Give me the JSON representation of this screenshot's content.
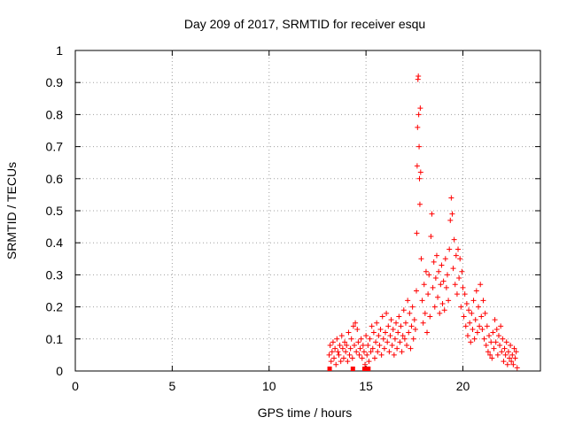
{
  "chart_data": {
    "type": "scatter",
    "title": "Day 209 of 2017, SRMTID for receiver esqu",
    "xlabel": "GPS time / hours",
    "ylabel": "SRMTID / TECUs",
    "xlim": [
      0,
      24
    ],
    "ylim": [
      0,
      1
    ],
    "x_ticks": [
      0,
      5,
      10,
      15,
      20
    ],
    "x_tick_labels": [
      "0",
      "5",
      "10",
      "15",
      "20"
    ],
    "y_ticks": [
      0,
      0.1,
      0.2,
      0.3,
      0.4,
      0.5,
      0.6,
      0.7,
      0.8,
      0.9,
      1
    ],
    "y_tick_labels": [
      "0",
      "0.1",
      "0.2",
      "0.3",
      "0.4",
      "0.5",
      "0.6",
      "0.7",
      "0.8",
      "0.9",
      "1"
    ],
    "grid": true,
    "marker": "plus",
    "color": "#ff0000",
    "series": [
      {
        "name": "SRMTID",
        "points": [
          [
            13.1,
            0.05
          ],
          [
            13.15,
            0.08
          ],
          [
            13.2,
            0.03
          ],
          [
            13.25,
            0.06
          ],
          [
            13.3,
            0.09
          ],
          [
            13.35,
            0.04
          ],
          [
            13.4,
            0.07
          ],
          [
            13.45,
            0.02
          ],
          [
            13.5,
            0.1
          ],
          [
            13.55,
            0.06
          ],
          [
            13.6,
            0.05
          ],
          [
            13.65,
            0.08
          ],
          [
            13.7,
            0.03
          ],
          [
            13.75,
            0.11
          ],
          [
            13.8,
            0.07
          ],
          [
            13.85,
            0.04
          ],
          [
            13.9,
            0.09
          ],
          [
            13.95,
            0.06
          ],
          [
            14.0,
            0.08
          ],
          [
            14.05,
            0.03
          ],
          [
            14.1,
            0.12
          ],
          [
            14.15,
            0.05
          ],
          [
            14.2,
            0.07
          ],
          [
            14.25,
            0.1
          ],
          [
            14.3,
            0.04
          ],
          [
            14.35,
            0.14
          ],
          [
            14.4,
            0.08
          ],
          [
            14.45,
            0.15
          ],
          [
            14.5,
            0.06
          ],
          [
            14.55,
            0.13
          ],
          [
            14.6,
            0.09
          ],
          [
            14.65,
            0.05
          ],
          [
            14.7,
            0.07
          ],
          [
            14.75,
            0.1
          ],
          [
            14.8,
            0.04
          ],
          [
            14.85,
            0.08
          ],
          [
            14.9,
            0.06
          ],
          [
            14.95,
            0.02
          ],
          [
            15.0,
            0.11
          ],
          [
            15.05,
            0.05
          ],
          [
            15.1,
            0.08
          ],
          [
            15.15,
            0.03
          ],
          [
            15.2,
            0.1
          ],
          [
            15.25,
            0.06
          ],
          [
            15.3,
            0.14
          ],
          [
            15.35,
            0.07
          ],
          [
            15.4,
            0.12
          ],
          [
            15.45,
            0.04
          ],
          [
            15.5,
            0.09
          ],
          [
            15.55,
            0.15
          ],
          [
            15.6,
            0.06
          ],
          [
            15.65,
            0.11
          ],
          [
            15.7,
            0.08
          ],
          [
            15.75,
            0.13
          ],
          [
            15.8,
            0.05
          ],
          [
            15.85,
            0.17
          ],
          [
            15.9,
            0.1
          ],
          [
            15.95,
            0.07
          ],
          [
            16.0,
            0.12
          ],
          [
            16.05,
            0.18
          ],
          [
            16.1,
            0.09
          ],
          [
            16.15,
            0.14
          ],
          [
            16.2,
            0.06
          ],
          [
            16.25,
            0.11
          ],
          [
            16.3,
            0.16
          ],
          [
            16.35,
            0.08
          ],
          [
            16.4,
            0.13
          ],
          [
            16.45,
            0.05
          ],
          [
            16.5,
            0.1
          ],
          [
            16.55,
            0.15
          ],
          [
            16.6,
            0.07
          ],
          [
            16.65,
            0.12
          ],
          [
            16.7,
            0.17
          ],
          [
            16.75,
            0.09
          ],
          [
            16.8,
            0.14
          ],
          [
            16.85,
            0.06
          ],
          [
            16.9,
            0.11
          ],
          [
            16.95,
            0.19
          ],
          [
            17.0,
            0.1
          ],
          [
            17.05,
            0.15
          ],
          [
            17.1,
            0.08
          ],
          [
            17.15,
            0.22
          ],
          [
            17.2,
            0.12
          ],
          [
            17.25,
            0.18
          ],
          [
            17.3,
            0.07
          ],
          [
            17.35,
            0.14
          ],
          [
            17.4,
            0.2
          ],
          [
            17.45,
            0.1
          ],
          [
            17.5,
            0.16
          ],
          [
            17.55,
            0.13
          ],
          [
            17.6,
            0.25
          ],
          [
            17.62,
            0.43
          ],
          [
            17.64,
            0.64
          ],
          [
            17.66,
            0.76
          ],
          [
            17.68,
            0.91
          ],
          [
            17.7,
            0.92
          ],
          [
            17.72,
            0.8
          ],
          [
            17.74,
            0.7
          ],
          [
            17.76,
            0.6
          ],
          [
            17.78,
            0.52
          ],
          [
            17.8,
            0.82
          ],
          [
            17.82,
            0.62
          ],
          [
            17.85,
            0.35
          ],
          [
            17.9,
            0.22
          ],
          [
            17.95,
            0.15
          ],
          [
            18.0,
            0.27
          ],
          [
            18.05,
            0.18
          ],
          [
            18.1,
            0.31
          ],
          [
            18.15,
            0.12
          ],
          [
            18.2,
            0.24
          ],
          [
            18.25,
            0.3
          ],
          [
            18.3,
            0.17
          ],
          [
            18.35,
            0.42
          ],
          [
            18.4,
            0.49
          ],
          [
            18.45,
            0.26
          ],
          [
            18.5,
            0.34
          ],
          [
            18.55,
            0.2
          ],
          [
            18.6,
            0.29
          ],
          [
            18.65,
            0.36
          ],
          [
            18.7,
            0.23
          ],
          [
            18.75,
            0.31
          ],
          [
            18.8,
            0.18
          ],
          [
            18.85,
            0.27
          ],
          [
            18.9,
            0.33
          ],
          [
            18.95,
            0.21
          ],
          [
            19.0,
            0.28
          ],
          [
            19.05,
            0.19
          ],
          [
            19.1,
            0.35
          ],
          [
            19.15,
            0.26
          ],
          [
            19.2,
            0.3
          ],
          [
            19.25,
            0.22
          ],
          [
            19.3,
            0.38
          ],
          [
            19.35,
            0.47
          ],
          [
            19.4,
            0.54
          ],
          [
            19.45,
            0.49
          ],
          [
            19.5,
            0.32
          ],
          [
            19.55,
            0.41
          ],
          [
            19.6,
            0.27
          ],
          [
            19.65,
            0.36
          ],
          [
            19.7,
            0.24
          ],
          [
            19.75,
            0.38
          ],
          [
            19.8,
            0.29
          ],
          [
            19.85,
            0.35
          ],
          [
            19.9,
            0.2
          ],
          [
            19.95,
            0.31
          ],
          [
            20.0,
            0.26
          ],
          [
            20.05,
            0.17
          ],
          [
            20.1,
            0.24
          ],
          [
            20.15,
            0.14
          ],
          [
            20.2,
            0.21
          ],
          [
            20.25,
            0.11
          ],
          [
            20.3,
            0.19
          ],
          [
            20.35,
            0.15
          ],
          [
            20.4,
            0.09
          ],
          [
            20.45,
            0.18
          ],
          [
            20.5,
            0.13
          ],
          [
            20.55,
            0.22
          ],
          [
            20.6,
            0.1
          ],
          [
            20.65,
            0.16
          ],
          [
            20.7,
            0.25
          ],
          [
            20.75,
            0.12
          ],
          [
            20.8,
            0.2
          ],
          [
            20.85,
            0.14
          ],
          [
            20.9,
            0.27
          ],
          [
            20.95,
            0.17
          ],
          [
            21.0,
            0.13
          ],
          [
            21.05,
            0.22
          ],
          [
            21.1,
            0.1
          ],
          [
            21.15,
            0.18
          ],
          [
            21.2,
            0.08
          ],
          [
            21.25,
            0.14
          ],
          [
            21.3,
            0.06
          ],
          [
            21.35,
            0.11
          ],
          [
            21.4,
            0.05
          ],
          [
            21.45,
            0.09
          ],
          [
            21.5,
            0.04
          ],
          [
            21.55,
            0.12
          ],
          [
            21.6,
            0.07
          ],
          [
            21.65,
            0.16
          ],
          [
            21.7,
            0.09
          ],
          [
            21.75,
            0.13
          ],
          [
            21.8,
            0.05
          ],
          [
            21.85,
            0.11
          ],
          [
            21.9,
            0.08
          ],
          [
            21.95,
            0.14
          ],
          [
            22.0,
            0.06
          ],
          [
            22.05,
            0.1
          ],
          [
            22.1,
            0.03
          ],
          [
            22.15,
            0.07
          ],
          [
            22.2,
            0.05
          ],
          [
            22.25,
            0.09
          ],
          [
            22.3,
            0.02
          ],
          [
            22.35,
            0.06
          ],
          [
            22.4,
            0.04
          ],
          [
            22.45,
            0.08
          ],
          [
            22.5,
            0.03
          ],
          [
            22.55,
            0.05
          ],
          [
            22.6,
            0.02
          ],
          [
            22.65,
            0.07
          ],
          [
            22.7,
            0.04
          ],
          [
            22.75,
            0.06
          ],
          [
            22.8,
            0.01
          ]
        ],
        "zero_markers_x": [
          13.1,
          14.3,
          14.9,
          15.1
        ]
      }
    ]
  }
}
